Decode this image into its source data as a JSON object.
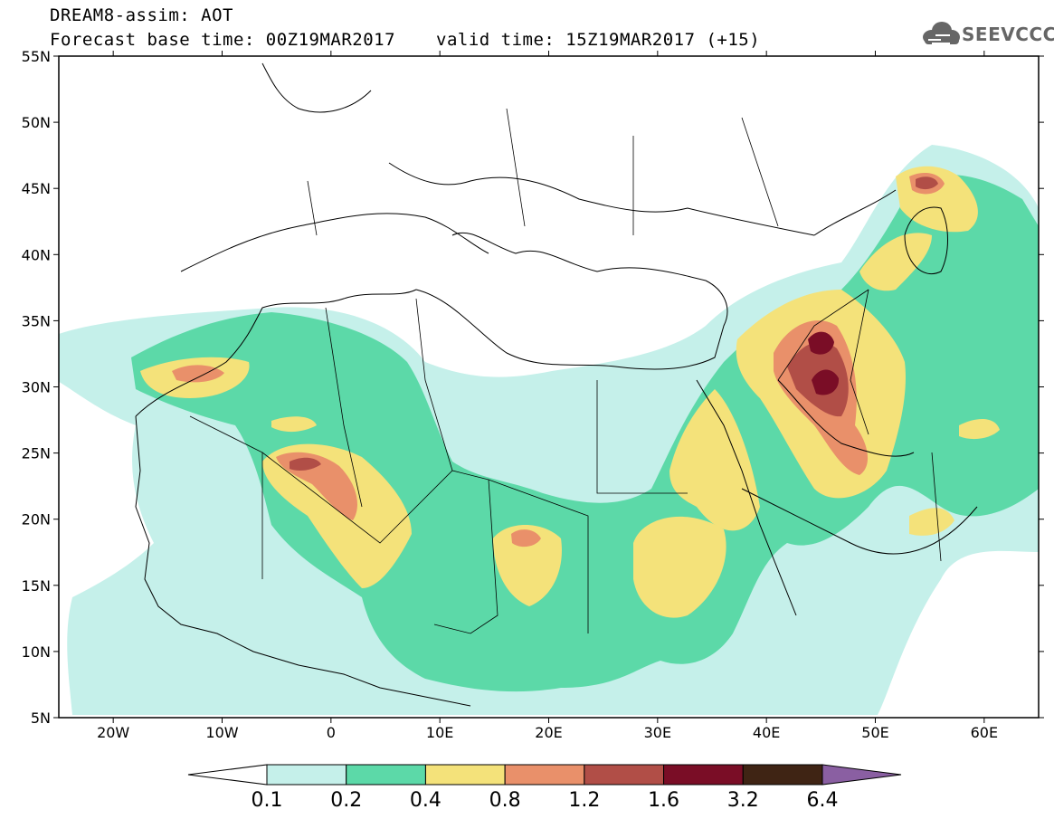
{
  "title": {
    "line1": "DREAM8-assim: AOT",
    "base_time": "Forecast base time: 00Z19MAR2017",
    "valid_time": "valid time: 15Z19MAR2017 (+15)"
  },
  "logo": {
    "text": "SEEVCCC",
    "icon": "cloud-icon"
  },
  "map": {
    "lon_range": [
      -25,
      65
    ],
    "lat_range": [
      5,
      55
    ],
    "lat_labels": [
      "55N",
      "50N",
      "45N",
      "40N",
      "35N",
      "30N",
      "25N",
      "20N",
      "15N",
      "10N",
      "5N"
    ],
    "lon_labels": [
      "20W",
      "10W",
      "0",
      "10E",
      "20E",
      "30E",
      "40E",
      "50E",
      "60E"
    ]
  },
  "colorbar": {
    "thresholds": [
      "0.1",
      "0.2",
      "0.4",
      "0.8",
      "1.2",
      "1.6",
      "3.2",
      "6.4"
    ],
    "colors": [
      "#ffffff",
      "#c5f0ea",
      "#5cd9a8",
      "#f4e27a",
      "#e9906a",
      "#b14e47",
      "#7a0d26",
      "#3f2414",
      "#8a5fa2"
    ]
  }
}
